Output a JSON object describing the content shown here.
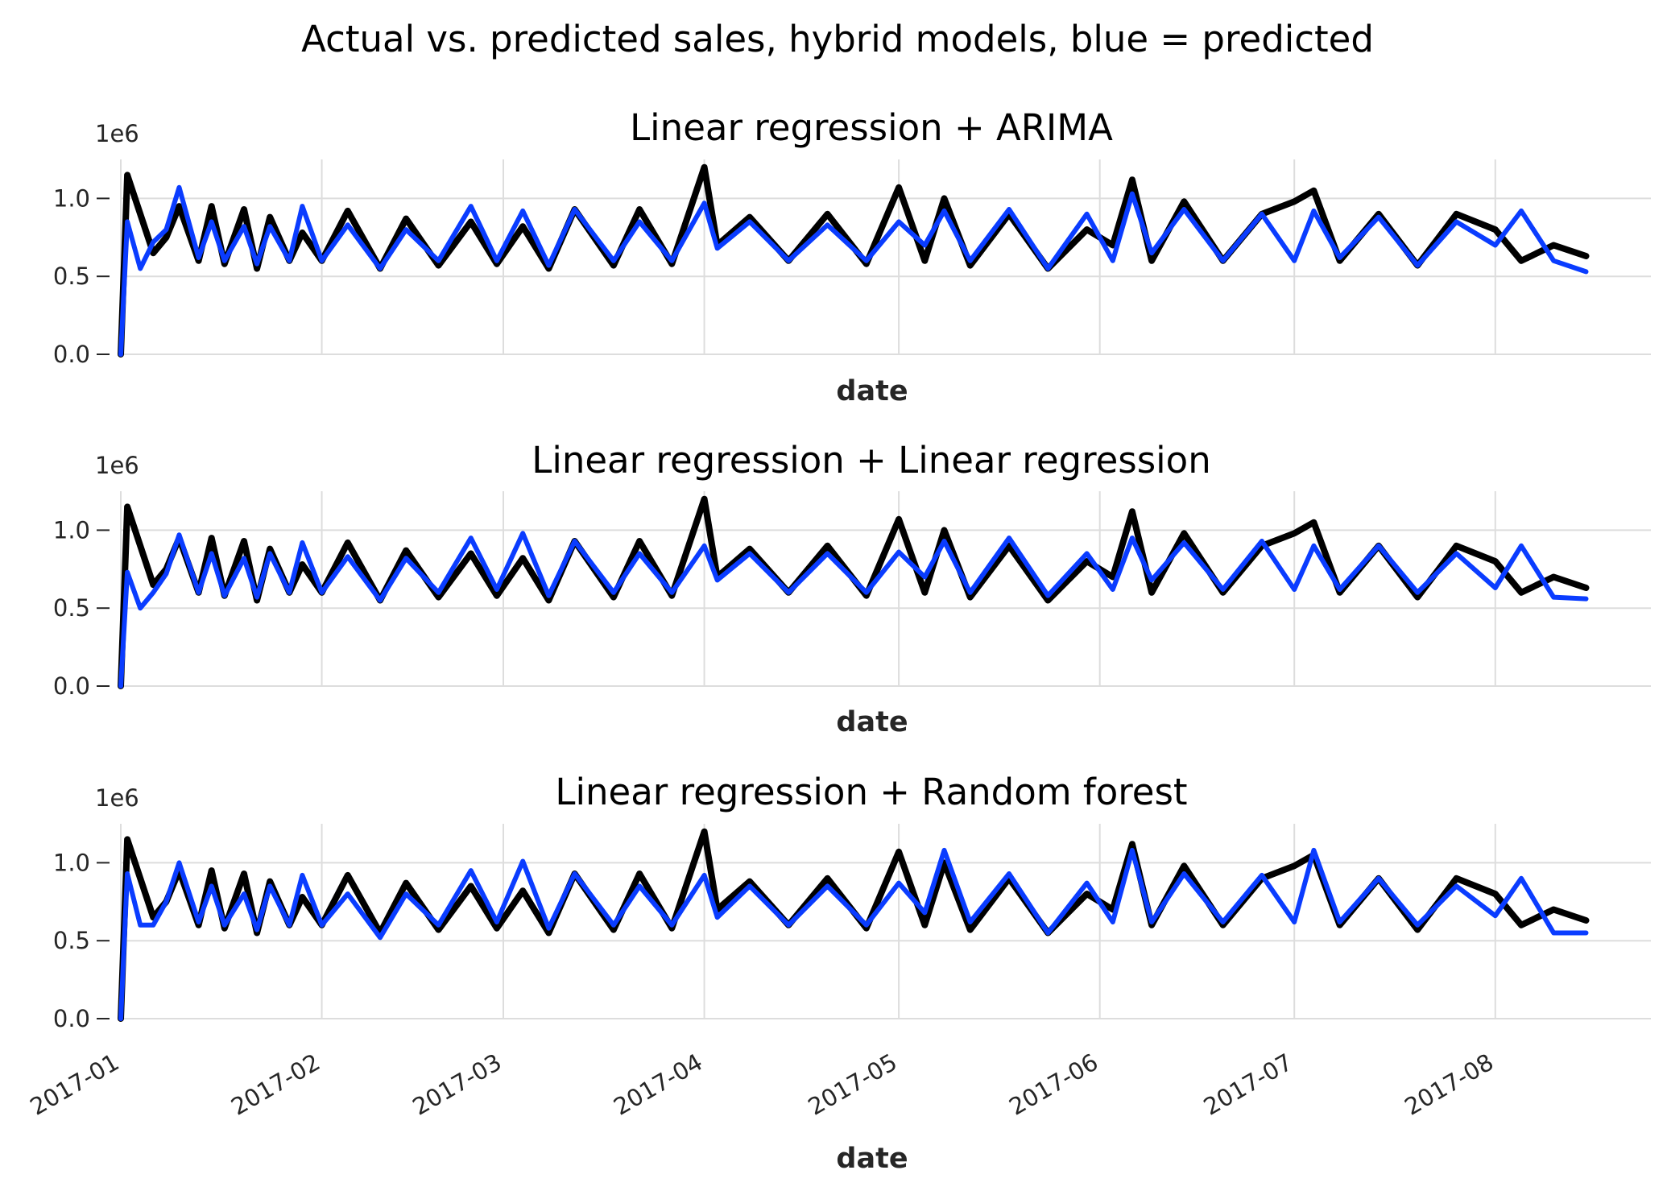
{
  "figure_title": "Actual vs. predicted sales, hybrid models, blue = predicted",
  "colors": {
    "actual": "#000000",
    "predicted": "#0a3cff",
    "grid": "#dddddd",
    "text": "#262626"
  },
  "chart_data": [
    {
      "type": "line",
      "title": "Linear regression + ARIMA",
      "xlabel": "date",
      "ylabel": "",
      "y_offset_label": "1e6",
      "y_scale": 1000000,
      "ylim": [
        0,
        1.25
      ],
      "yticks": [
        0.0,
        0.5,
        1.0
      ],
      "ytick_labels": [
        "0.0",
        "0.5",
        "1.0"
      ],
      "xlim": [
        "2017-01-01",
        "2017-08-25"
      ],
      "xticks": [
        "2017-01-01",
        "2017-02-01",
        "2017-03-01",
        "2017-04-01",
        "2017-05-01",
        "2017-06-01",
        "2017-07-01",
        "2017-08-01"
      ],
      "xtick_labels": [],
      "series": [
        {
          "label": "actual",
          "color": "#000000",
          "x": [
            "2017-01-01",
            "2017-01-02",
            "2017-01-04",
            "2017-01-06",
            "2017-01-08",
            "2017-01-10",
            "2017-01-13",
            "2017-01-15",
            "2017-01-17",
            "2017-01-20",
            "2017-01-22",
            "2017-01-24",
            "2017-01-27",
            "2017-01-29",
            "2017-02-01",
            "2017-02-05",
            "2017-02-10",
            "2017-02-14",
            "2017-02-19",
            "2017-02-24",
            "2017-02-28",
            "2017-03-04",
            "2017-03-08",
            "2017-03-12",
            "2017-03-18",
            "2017-03-22",
            "2017-03-27",
            "2017-04-01",
            "2017-04-03",
            "2017-04-08",
            "2017-04-14",
            "2017-04-20",
            "2017-04-26",
            "2017-05-01",
            "2017-05-05",
            "2017-05-08",
            "2017-05-12",
            "2017-05-18",
            "2017-05-24",
            "2017-05-30",
            "2017-06-03",
            "2017-06-06",
            "2017-06-09",
            "2017-06-14",
            "2017-06-20",
            "2017-06-26",
            "2017-07-01",
            "2017-07-04",
            "2017-07-08",
            "2017-07-14",
            "2017-07-20",
            "2017-07-26",
            "2017-08-01",
            "2017-08-05",
            "2017-08-10",
            "2017-08-15"
          ],
          "y": [
            0.0,
            1.15,
            0.9,
            0.65,
            0.75,
            0.95,
            0.6,
            0.95,
            0.58,
            0.93,
            0.55,
            0.88,
            0.6,
            0.78,
            0.6,
            0.92,
            0.55,
            0.87,
            0.57,
            0.85,
            0.58,
            0.82,
            0.55,
            0.93,
            0.57,
            0.93,
            0.58,
            1.2,
            0.7,
            0.88,
            0.6,
            0.9,
            0.58,
            1.07,
            0.6,
            1.0,
            0.57,
            0.9,
            0.55,
            0.8,
            0.7,
            1.12,
            0.6,
            0.98,
            0.6,
            0.9,
            0.98,
            1.05,
            0.6,
            0.9,
            0.57,
            0.9,
            0.8,
            0.6,
            0.7,
            0.63
          ]
        },
        {
          "label": "predicted",
          "color": "#0a3cff",
          "x": [
            "2017-01-01",
            "2017-01-02",
            "2017-01-04",
            "2017-01-06",
            "2017-01-08",
            "2017-01-10",
            "2017-01-13",
            "2017-01-15",
            "2017-01-17",
            "2017-01-20",
            "2017-01-22",
            "2017-01-24",
            "2017-01-27",
            "2017-01-29",
            "2017-02-01",
            "2017-02-05",
            "2017-02-10",
            "2017-02-14",
            "2017-02-19",
            "2017-02-24",
            "2017-02-28",
            "2017-03-04",
            "2017-03-08",
            "2017-03-12",
            "2017-03-18",
            "2017-03-22",
            "2017-03-27",
            "2017-04-01",
            "2017-04-03",
            "2017-04-08",
            "2017-04-14",
            "2017-04-20",
            "2017-04-26",
            "2017-05-01",
            "2017-05-05",
            "2017-05-08",
            "2017-05-12",
            "2017-05-18",
            "2017-05-24",
            "2017-05-30",
            "2017-06-03",
            "2017-06-06",
            "2017-06-09",
            "2017-06-14",
            "2017-06-20",
            "2017-06-26",
            "2017-07-01",
            "2017-07-04",
            "2017-07-08",
            "2017-07-14",
            "2017-07-20",
            "2017-07-26",
            "2017-08-01",
            "2017-08-05",
            "2017-08-10",
            "2017-08-15"
          ],
          "y": [
            0.0,
            0.85,
            0.55,
            0.72,
            0.8,
            1.07,
            0.62,
            0.85,
            0.6,
            0.82,
            0.58,
            0.82,
            0.6,
            0.95,
            0.6,
            0.83,
            0.55,
            0.8,
            0.6,
            0.95,
            0.6,
            0.92,
            0.57,
            0.93,
            0.6,
            0.85,
            0.6,
            0.97,
            0.68,
            0.85,
            0.6,
            0.83,
            0.6,
            0.85,
            0.7,
            0.92,
            0.6,
            0.93,
            0.55,
            0.9,
            0.6,
            1.03,
            0.65,
            0.93,
            0.6,
            0.9,
            0.6,
            0.92,
            0.62,
            0.88,
            0.57,
            0.85,
            0.7,
            0.92,
            0.6,
            0.53
          ]
        }
      ]
    },
    {
      "type": "line",
      "title": "Linear regression + Linear regression",
      "xlabel": "date",
      "ylabel": "",
      "y_offset_label": "1e6",
      "y_scale": 1000000,
      "ylim": [
        0,
        1.25
      ],
      "yticks": [
        0.0,
        0.5,
        1.0
      ],
      "ytick_labels": [
        "0.0",
        "0.5",
        "1.0"
      ],
      "xlim": [
        "2017-01-01",
        "2017-08-25"
      ],
      "xticks": [
        "2017-01-01",
        "2017-02-01",
        "2017-03-01",
        "2017-04-01",
        "2017-05-01",
        "2017-06-01",
        "2017-07-01",
        "2017-08-01"
      ],
      "xtick_labels": [],
      "series": [
        {
          "label": "actual",
          "color": "#000000",
          "x": [
            "2017-01-01",
            "2017-01-02",
            "2017-01-04",
            "2017-01-06",
            "2017-01-08",
            "2017-01-10",
            "2017-01-13",
            "2017-01-15",
            "2017-01-17",
            "2017-01-20",
            "2017-01-22",
            "2017-01-24",
            "2017-01-27",
            "2017-01-29",
            "2017-02-01",
            "2017-02-05",
            "2017-02-10",
            "2017-02-14",
            "2017-02-19",
            "2017-02-24",
            "2017-02-28",
            "2017-03-04",
            "2017-03-08",
            "2017-03-12",
            "2017-03-18",
            "2017-03-22",
            "2017-03-27",
            "2017-04-01",
            "2017-04-03",
            "2017-04-08",
            "2017-04-14",
            "2017-04-20",
            "2017-04-26",
            "2017-05-01",
            "2017-05-05",
            "2017-05-08",
            "2017-05-12",
            "2017-05-18",
            "2017-05-24",
            "2017-05-30",
            "2017-06-03",
            "2017-06-06",
            "2017-06-09",
            "2017-06-14",
            "2017-06-20",
            "2017-06-26",
            "2017-07-01",
            "2017-07-04",
            "2017-07-08",
            "2017-07-14",
            "2017-07-20",
            "2017-07-26",
            "2017-08-01",
            "2017-08-05",
            "2017-08-10",
            "2017-08-15"
          ],
          "y": [
            0.0,
            1.15,
            0.9,
            0.65,
            0.75,
            0.95,
            0.6,
            0.95,
            0.58,
            0.93,
            0.55,
            0.88,
            0.6,
            0.78,
            0.6,
            0.92,
            0.55,
            0.87,
            0.57,
            0.85,
            0.58,
            0.82,
            0.55,
            0.93,
            0.57,
            0.93,
            0.58,
            1.2,
            0.7,
            0.88,
            0.6,
            0.9,
            0.58,
            1.07,
            0.6,
            1.0,
            0.57,
            0.9,
            0.55,
            0.8,
            0.7,
            1.12,
            0.6,
            0.98,
            0.6,
            0.9,
            0.98,
            1.05,
            0.6,
            0.9,
            0.57,
            0.9,
            0.8,
            0.6,
            0.7,
            0.63
          ]
        },
        {
          "label": "predicted",
          "color": "#0a3cff",
          "x": [
            "2017-01-01",
            "2017-01-02",
            "2017-01-04",
            "2017-01-06",
            "2017-01-08",
            "2017-01-10",
            "2017-01-13",
            "2017-01-15",
            "2017-01-17",
            "2017-01-20",
            "2017-01-22",
            "2017-01-24",
            "2017-01-27",
            "2017-01-29",
            "2017-02-01",
            "2017-02-05",
            "2017-02-10",
            "2017-02-14",
            "2017-02-19",
            "2017-02-24",
            "2017-02-28",
            "2017-03-04",
            "2017-03-08",
            "2017-03-12",
            "2017-03-18",
            "2017-03-22",
            "2017-03-27",
            "2017-04-01",
            "2017-04-03",
            "2017-04-08",
            "2017-04-14",
            "2017-04-20",
            "2017-04-26",
            "2017-05-01",
            "2017-05-05",
            "2017-05-08",
            "2017-05-12",
            "2017-05-18",
            "2017-05-24",
            "2017-05-30",
            "2017-06-03",
            "2017-06-06",
            "2017-06-09",
            "2017-06-14",
            "2017-06-20",
            "2017-06-26",
            "2017-07-01",
            "2017-07-04",
            "2017-07-08",
            "2017-07-14",
            "2017-07-20",
            "2017-07-26",
            "2017-08-01",
            "2017-08-05",
            "2017-08-10",
            "2017-08-15"
          ],
          "y": [
            0.0,
            0.73,
            0.5,
            0.6,
            0.72,
            0.97,
            0.6,
            0.85,
            0.58,
            0.82,
            0.57,
            0.85,
            0.6,
            0.92,
            0.6,
            0.83,
            0.55,
            0.82,
            0.6,
            0.95,
            0.62,
            0.98,
            0.58,
            0.93,
            0.6,
            0.85,
            0.6,
            0.9,
            0.68,
            0.85,
            0.6,
            0.85,
            0.6,
            0.86,
            0.7,
            0.93,
            0.6,
            0.95,
            0.58,
            0.85,
            0.62,
            0.95,
            0.68,
            0.92,
            0.62,
            0.93,
            0.62,
            0.9,
            0.62,
            0.9,
            0.6,
            0.85,
            0.63,
            0.9,
            0.57,
            0.56
          ]
        }
      ]
    },
    {
      "type": "line",
      "title": "Linear regression + Random forest",
      "xlabel": "date",
      "ylabel": "",
      "y_offset_label": "1e6",
      "y_scale": 1000000,
      "ylim": [
        0,
        1.25
      ],
      "yticks": [
        0.0,
        0.5,
        1.0
      ],
      "ytick_labels": [
        "0.0",
        "0.5",
        "1.0"
      ],
      "xlim": [
        "2017-01-01",
        "2017-08-25"
      ],
      "xticks": [
        "2017-01-01",
        "2017-02-01",
        "2017-03-01",
        "2017-04-01",
        "2017-05-01",
        "2017-06-01",
        "2017-07-01",
        "2017-08-01"
      ],
      "xtick_labels": [
        "2017-01",
        "2017-02",
        "2017-03",
        "2017-04",
        "2017-05",
        "2017-06",
        "2017-07",
        "2017-08"
      ],
      "series": [
        {
          "label": "actual",
          "color": "#000000",
          "x": [
            "2017-01-01",
            "2017-01-02",
            "2017-01-04",
            "2017-01-06",
            "2017-01-08",
            "2017-01-10",
            "2017-01-13",
            "2017-01-15",
            "2017-01-17",
            "2017-01-20",
            "2017-01-22",
            "2017-01-24",
            "2017-01-27",
            "2017-01-29",
            "2017-02-01",
            "2017-02-05",
            "2017-02-10",
            "2017-02-14",
            "2017-02-19",
            "2017-02-24",
            "2017-02-28",
            "2017-03-04",
            "2017-03-08",
            "2017-03-12",
            "2017-03-18",
            "2017-03-22",
            "2017-03-27",
            "2017-04-01",
            "2017-04-03",
            "2017-04-08",
            "2017-04-14",
            "2017-04-20",
            "2017-04-26",
            "2017-05-01",
            "2017-05-05",
            "2017-05-08",
            "2017-05-12",
            "2017-05-18",
            "2017-05-24",
            "2017-05-30",
            "2017-06-03",
            "2017-06-06",
            "2017-06-09",
            "2017-06-14",
            "2017-06-20",
            "2017-06-26",
            "2017-07-01",
            "2017-07-04",
            "2017-07-08",
            "2017-07-14",
            "2017-07-20",
            "2017-07-26",
            "2017-08-01",
            "2017-08-05",
            "2017-08-10",
            "2017-08-15"
          ],
          "y": [
            0.0,
            1.15,
            0.9,
            0.65,
            0.75,
            0.95,
            0.6,
            0.95,
            0.58,
            0.93,
            0.55,
            0.88,
            0.6,
            0.78,
            0.6,
            0.92,
            0.55,
            0.87,
            0.57,
            0.85,
            0.58,
            0.82,
            0.55,
            0.93,
            0.57,
            0.93,
            0.58,
            1.2,
            0.7,
            0.88,
            0.6,
            0.9,
            0.58,
            1.07,
            0.6,
            1.0,
            0.57,
            0.9,
            0.55,
            0.8,
            0.7,
            1.12,
            0.6,
            0.98,
            0.6,
            0.9,
            0.98,
            1.05,
            0.6,
            0.9,
            0.57,
            0.9,
            0.8,
            0.6,
            0.7,
            0.63
          ]
        },
        {
          "label": "predicted",
          "color": "#0a3cff",
          "x": [
            "2017-01-01",
            "2017-01-02",
            "2017-01-04",
            "2017-01-06",
            "2017-01-08",
            "2017-01-10",
            "2017-01-13",
            "2017-01-15",
            "2017-01-17",
            "2017-01-20",
            "2017-01-22",
            "2017-01-24",
            "2017-01-27",
            "2017-01-29",
            "2017-02-01",
            "2017-02-05",
            "2017-02-10",
            "2017-02-14",
            "2017-02-19",
            "2017-02-24",
            "2017-02-28",
            "2017-03-04",
            "2017-03-08",
            "2017-03-12",
            "2017-03-18",
            "2017-03-22",
            "2017-03-27",
            "2017-04-01",
            "2017-04-03",
            "2017-04-08",
            "2017-04-14",
            "2017-04-20",
            "2017-04-26",
            "2017-05-01",
            "2017-05-05",
            "2017-05-08",
            "2017-05-12",
            "2017-05-18",
            "2017-05-24",
            "2017-05-30",
            "2017-06-03",
            "2017-06-06",
            "2017-06-09",
            "2017-06-14",
            "2017-06-20",
            "2017-06-26",
            "2017-07-01",
            "2017-07-04",
            "2017-07-08",
            "2017-07-14",
            "2017-07-20",
            "2017-07-26",
            "2017-08-01",
            "2017-08-05",
            "2017-08-10",
            "2017-08-15"
          ],
          "y": [
            0.0,
            0.93,
            0.6,
            0.6,
            0.75,
            1.0,
            0.62,
            0.85,
            0.6,
            0.8,
            0.57,
            0.85,
            0.6,
            0.92,
            0.6,
            0.8,
            0.52,
            0.8,
            0.6,
            0.95,
            0.62,
            1.01,
            0.58,
            0.93,
            0.6,
            0.85,
            0.6,
            0.92,
            0.65,
            0.85,
            0.6,
            0.85,
            0.6,
            0.87,
            0.68,
            1.08,
            0.62,
            0.93,
            0.55,
            0.87,
            0.62,
            1.08,
            0.62,
            0.93,
            0.62,
            0.92,
            0.62,
            1.08,
            0.62,
            0.9,
            0.6,
            0.85,
            0.66,
            0.9,
            0.55,
            0.55
          ]
        }
      ]
    }
  ]
}
